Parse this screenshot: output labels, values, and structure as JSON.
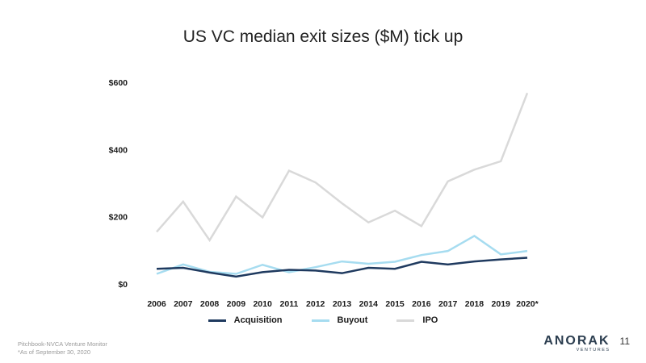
{
  "slide": {
    "title": "US VC median exit sizes ($M) tick up",
    "footnote_source": "Pitchbook-NVCA Venture Monitor",
    "footnote_note": "*As of September 30, 2020",
    "logo_name": "ANORAK",
    "logo_sub": "VENTURES",
    "page_number": "11"
  },
  "chart_data": {
    "type": "line",
    "title": "",
    "xlabel": "",
    "ylabel": "",
    "categories": [
      "2006",
      "2007",
      "2008",
      "2009",
      "2010",
      "2011",
      "2012",
      "2013",
      "2014",
      "2015",
      "2016",
      "2017",
      "2018",
      "2019",
      "2020*"
    ],
    "ylim": [
      0,
      600
    ],
    "yticks": [
      0,
      200,
      400,
      600
    ],
    "ytick_labels": [
      "$0",
      "$200",
      "$400",
      "$600"
    ],
    "grid": false,
    "legend_position": "bottom",
    "series": [
      {
        "name": "IPO",
        "color": "#d9d9d9",
        "values": [
          155,
          245,
          130,
          260,
          198,
          337,
          302,
          240,
          183,
          218,
          172,
          305,
          340,
          365,
          568
        ]
      },
      {
        "name": "Buyout",
        "color": "#a6dcf0",
        "values": [
          30,
          58,
          36,
          30,
          57,
          35,
          50,
          67,
          60,
          66,
          86,
          98,
          143,
          88,
          98
        ]
      },
      {
        "name": "Acquisition",
        "color": "#1f3a5f",
        "values": [
          45,
          48,
          34,
          22,
          35,
          42,
          40,
          32,
          48,
          45,
          66,
          58,
          67,
          73,
          78
        ]
      }
    ],
    "legend_order": [
      "Acquisition",
      "Buyout",
      "IPO"
    ]
  }
}
